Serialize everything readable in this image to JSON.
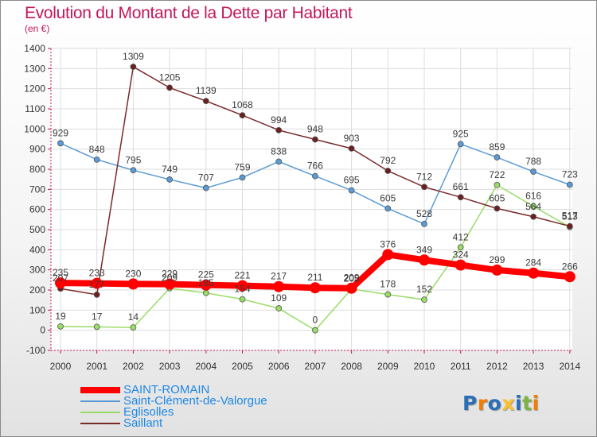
{
  "title": "Evolution du Montant de la Dette par Habitant",
  "unit": "(en €)",
  "logo": {
    "letters": [
      "P",
      "r",
      "o",
      "x",
      "i",
      "t",
      "i"
    ],
    "colors": [
      "#2a6fb8",
      "#f57c00",
      "#2a6fb8",
      "#fbc02d",
      "#2a6fb8",
      "#7cb342",
      "#f57c00"
    ]
  },
  "chart_data": {
    "type": "line",
    "title": "Evolution du Montant de la Dette par Habitant",
    "ylabel": "(en €)",
    "xlabel": "",
    "x": [
      "2000",
      "2001",
      "2002",
      "2003",
      "2004",
      "2005",
      "2006",
      "2007",
      "2008",
      "2009",
      "2010",
      "2011",
      "2012",
      "2013",
      "2014"
    ],
    "yticks": [
      -100,
      0,
      100,
      200,
      300,
      400,
      500,
      600,
      700,
      800,
      900,
      1000,
      1100,
      1200,
      1300,
      1400
    ],
    "ylim": [
      -100,
      1400
    ],
    "grid": true,
    "legend": "bottom-left",
    "series": [
      {
        "name": "SAINT-ROMAIN",
        "color": "#ff0000",
        "values": [
          235,
          233,
          230,
          229,
          225,
          221,
          217,
          211,
          209,
          376,
          349,
          324,
          299,
          284,
          266
        ]
      },
      {
        "name": "Saint-Clément-de-Valorgue",
        "color": "#5b9bd5",
        "values": [
          929,
          848,
          795,
          749,
          707,
          759,
          838,
          766,
          695,
          605,
          528,
          925,
          859,
          788,
          723
        ]
      },
      {
        "name": "Eglisolles",
        "color": "#99dd66",
        "values": [
          19,
          17,
          14,
          209,
          185,
          154,
          109,
          0,
          205,
          178,
          152,
          412,
          722,
          616,
          513
        ]
      },
      {
        "name": "Saillant",
        "color": "#7a2a2a",
        "values": [
          207,
          177,
          1309,
          1205,
          1139,
          1068,
          994,
          948,
          903,
          792,
          712,
          661,
          605,
          564,
          517
        ]
      }
    ]
  }
}
